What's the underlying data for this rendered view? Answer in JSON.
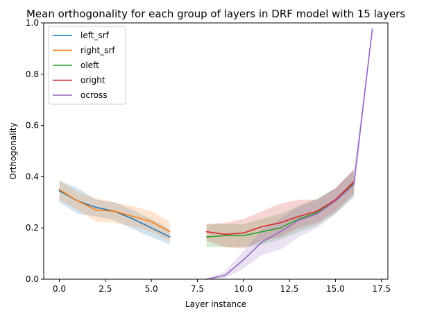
{
  "chart_data": {
    "type": "line",
    "title": "Mean orthogonality for each group of layers in DRF model with 15 layers",
    "xlabel": "Layer instance",
    "ylabel": "Orthogonality",
    "xlim": [
      -0.85,
      17.85
    ],
    "ylim": [
      0.0,
      1.0
    ],
    "xticks": [
      0.0,
      2.5,
      5.0,
      7.5,
      10.0,
      12.5,
      15.0,
      17.5
    ],
    "xtick_labels": [
      "0.0",
      "2.5",
      "5.0",
      "7.5",
      "10.0",
      "12.5",
      "15.0",
      "17.5"
    ],
    "yticks": [
      0.0,
      0.2,
      0.4,
      0.6,
      0.8,
      1.0
    ],
    "ytick_labels": [
      "0.0",
      "0.2",
      "0.4",
      "0.6",
      "0.8",
      "1.0"
    ],
    "grid": false,
    "legend_position": "top-left",
    "series": [
      {
        "name": "left_srf",
        "color": "#1f77b4",
        "x": [
          0,
          1,
          2,
          3,
          4,
          5,
          6
        ],
        "y": [
          0.345,
          0.305,
          0.28,
          0.265,
          0.235,
          0.2,
          0.165
        ],
        "lower": [
          0.3,
          0.255,
          0.245,
          0.23,
          0.195,
          0.165,
          0.135
        ],
        "upper": [
          0.385,
          0.355,
          0.31,
          0.3,
          0.27,
          0.235,
          0.195
        ]
      },
      {
        "name": "right_srf",
        "color": "#ff7f0e",
        "x": [
          0,
          1,
          2,
          3,
          4,
          5,
          6
        ],
        "y": [
          0.35,
          0.305,
          0.27,
          0.265,
          0.245,
          0.225,
          0.185
        ],
        "lower": [
          0.31,
          0.27,
          0.225,
          0.22,
          0.205,
          0.185,
          0.15
        ],
        "upper": [
          0.385,
          0.34,
          0.315,
          0.3,
          0.285,
          0.265,
          0.225
        ]
      },
      {
        "name": "oleft",
        "color": "#2ca02c",
        "x": [
          8,
          9,
          10,
          11,
          12,
          13,
          14,
          15,
          16
        ],
        "y": [
          0.165,
          0.17,
          0.17,
          0.185,
          0.2,
          0.235,
          0.26,
          0.305,
          0.375
        ],
        "lower": [
          0.125,
          0.125,
          0.125,
          0.135,
          0.155,
          0.185,
          0.21,
          0.255,
          0.325
        ],
        "upper": [
          0.215,
          0.215,
          0.215,
          0.235,
          0.255,
          0.285,
          0.315,
          0.355,
          0.425
        ]
      },
      {
        "name": "oright",
        "color": "#d62728",
        "x": [
          8,
          9,
          10,
          11,
          12,
          13,
          14,
          15,
          16
        ],
        "y": [
          0.185,
          0.175,
          0.18,
          0.205,
          0.22,
          0.245,
          0.265,
          0.31,
          0.38
        ],
        "lower": [
          0.15,
          0.125,
          0.12,
          0.15,
          0.165,
          0.2,
          0.22,
          0.265,
          0.335
        ],
        "upper": [
          0.215,
          0.22,
          0.235,
          0.265,
          0.295,
          0.31,
          0.31,
          0.355,
          0.43
        ]
      },
      {
        "name": "ocross",
        "color": "#9467bd",
        "x": [
          8,
          9,
          10,
          11,
          12,
          13,
          14,
          15,
          16,
          17
        ],
        "y": [
          0.0,
          0.015,
          0.075,
          0.145,
          0.185,
          0.23,
          0.255,
          0.305,
          0.37,
          0.975
        ],
        "lower": [
          0.0,
          0.005,
          0.04,
          0.095,
          0.115,
          0.165,
          0.2,
          0.255,
          0.32,
          0.97
        ],
        "upper": [
          0.0,
          0.03,
          0.11,
          0.195,
          0.235,
          0.285,
          0.31,
          0.355,
          0.425,
          0.98
        ]
      }
    ]
  }
}
